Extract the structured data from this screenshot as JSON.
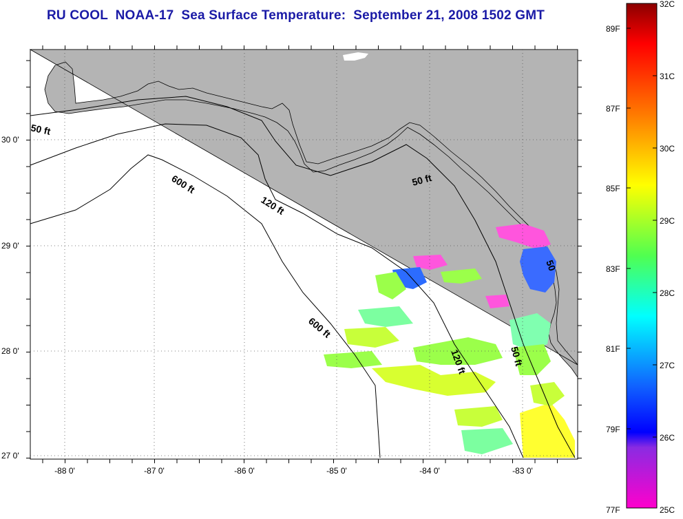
{
  "title": "RU COOL  NOAA-17  Sea Surface Temperature:  September 21, 2008 1502 GMT",
  "map": {
    "lon_ticks": [
      "-88 0'",
      "-87 0'",
      "-86 0'",
      "-85 0'",
      "-84 0'",
      "-83 0'"
    ],
    "lat_ticks": [
      "30 0'",
      "29 0'",
      "28 0'",
      "27 0'"
    ],
    "contours": [
      "50 ft",
      "600 ft",
      "120 ft",
      "50 ft",
      "600 ft",
      "120 ft",
      "50 ft",
      "50"
    ],
    "land_color": "#b4b4b4",
    "grid": "dotted"
  },
  "colorbar": {
    "fahrenheit": [
      "89F",
      "87F",
      "85F",
      "83F",
      "81F",
      "79F",
      "77F"
    ],
    "celsius": [
      "32C",
      "31C",
      "30C",
      "29C",
      "28C",
      "27C",
      "26C",
      "25C"
    ]
  }
}
